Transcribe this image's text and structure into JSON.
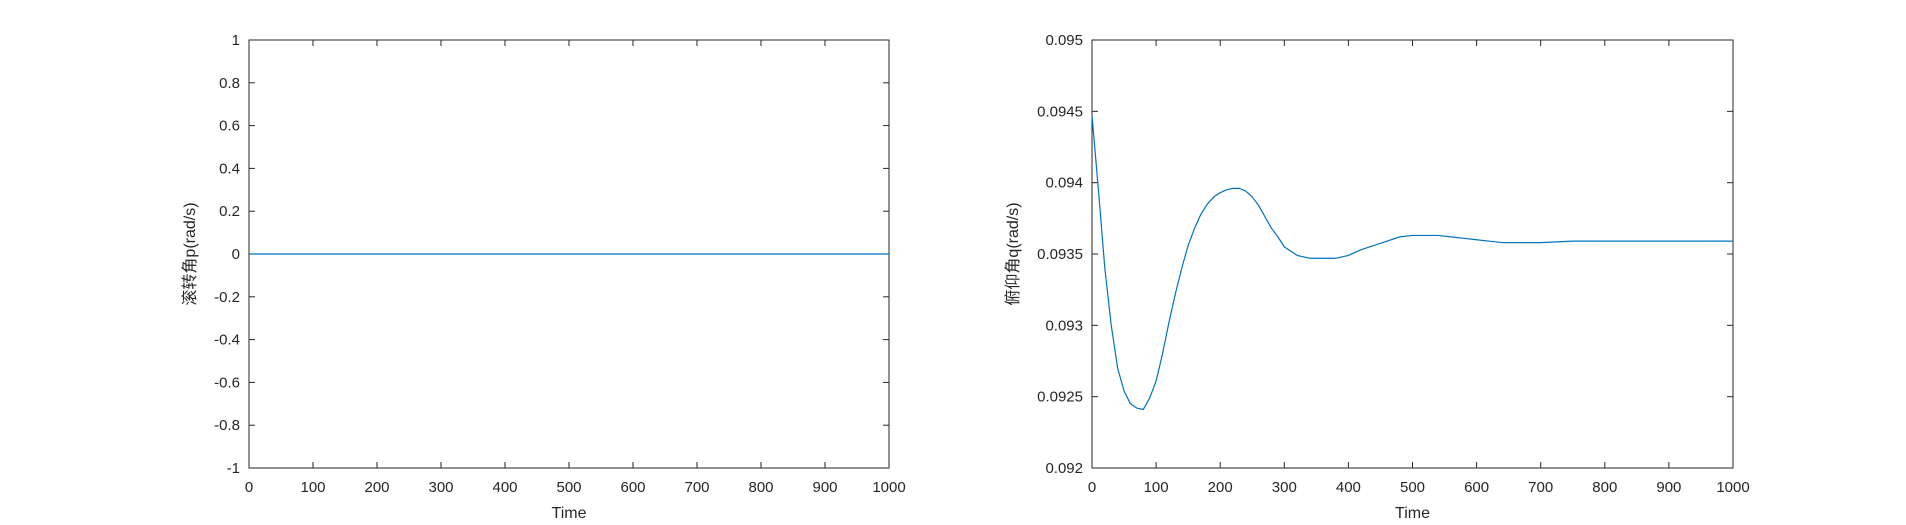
{
  "chart_data": [
    {
      "type": "line",
      "xlabel": "Time",
      "ylabel": "滚转角p(rad/s)",
      "xlim": [
        0,
        1000
      ],
      "ylim": [
        -1,
        1
      ],
      "xticks": [
        0,
        100,
        200,
        300,
        400,
        500,
        600,
        700,
        800,
        900,
        1000
      ],
      "xtick_labels": [
        "0",
        "100",
        "200",
        "300",
        "400",
        "500",
        "600",
        "700",
        "800",
        "900",
        "1000"
      ],
      "yticks": [
        -1,
        -0.8,
        -0.6,
        -0.4,
        -0.2,
        0,
        0.2,
        0.4,
        0.6,
        0.8,
        1
      ],
      "ytick_labels": [
        "-1",
        "-0.8",
        "-0.6",
        "-0.4",
        "-0.2",
        "0",
        "0.2",
        "0.4",
        "0.6",
        "0.8",
        "1"
      ],
      "grid": false,
      "line_color": "#0072BD",
      "series": [
        {
          "x": [
            0,
            1000
          ],
          "y": [
            0,
            0
          ]
        }
      ]
    },
    {
      "type": "line",
      "xlabel": "Time",
      "ylabel": "俯仰角q(rad/s)",
      "xlim": [
        0,
        1000
      ],
      "ylim": [
        0.092,
        0.095
      ],
      "xticks": [
        0,
        100,
        200,
        300,
        400,
        500,
        600,
        700,
        800,
        900,
        1000
      ],
      "xtick_labels": [
        "0",
        "100",
        "200",
        "300",
        "400",
        "500",
        "600",
        "700",
        "800",
        "900",
        "1000"
      ],
      "yticks": [
        0.092,
        0.0925,
        0.093,
        0.0935,
        0.094,
        0.0945,
        0.095
      ],
      "ytick_labels": [
        "0.092",
        "0.0925",
        "0.093",
        "0.0935",
        "0.094",
        "0.0945",
        "0.095"
      ],
      "grid": false,
      "line_color": "#0072BD",
      "series": [
        {
          "x": [
            0,
            10,
            20,
            30,
            40,
            50,
            60,
            70,
            80,
            90,
            100,
            110,
            120,
            130,
            140,
            150,
            160,
            170,
            180,
            190,
            200,
            210,
            220,
            230,
            240,
            250,
            260,
            270,
            280,
            290,
            300,
            320,
            340,
            360,
            380,
            400,
            420,
            440,
            460,
            480,
            500,
            520,
            540,
            560,
            580,
            600,
            620,
            640,
            660,
            680,
            700,
            750,
            800,
            850,
            900,
            950,
            1000
          ],
          "y": [
            0.09447,
            0.09395,
            0.0934,
            0.093,
            0.0927,
            0.09254,
            0.09245,
            0.09242,
            0.09241,
            0.09249,
            0.09261,
            0.0928,
            0.09302,
            0.09322,
            0.0934,
            0.09356,
            0.09368,
            0.09378,
            0.09385,
            0.0939,
            0.09393,
            0.09395,
            0.09396,
            0.09396,
            0.09394,
            0.0939,
            0.09384,
            0.09376,
            0.09368,
            0.09362,
            0.09355,
            0.09349,
            0.09347,
            0.09347,
            0.09347,
            0.09349,
            0.09353,
            0.09356,
            0.09359,
            0.09362,
            0.09363,
            0.09363,
            0.09363,
            0.09362,
            0.09361,
            0.0936,
            0.09359,
            0.09358,
            0.09358,
            0.09358,
            0.09358,
            0.09359,
            0.09359,
            0.09359,
            0.09359,
            0.09359,
            0.09359
          ]
        }
      ]
    }
  ]
}
